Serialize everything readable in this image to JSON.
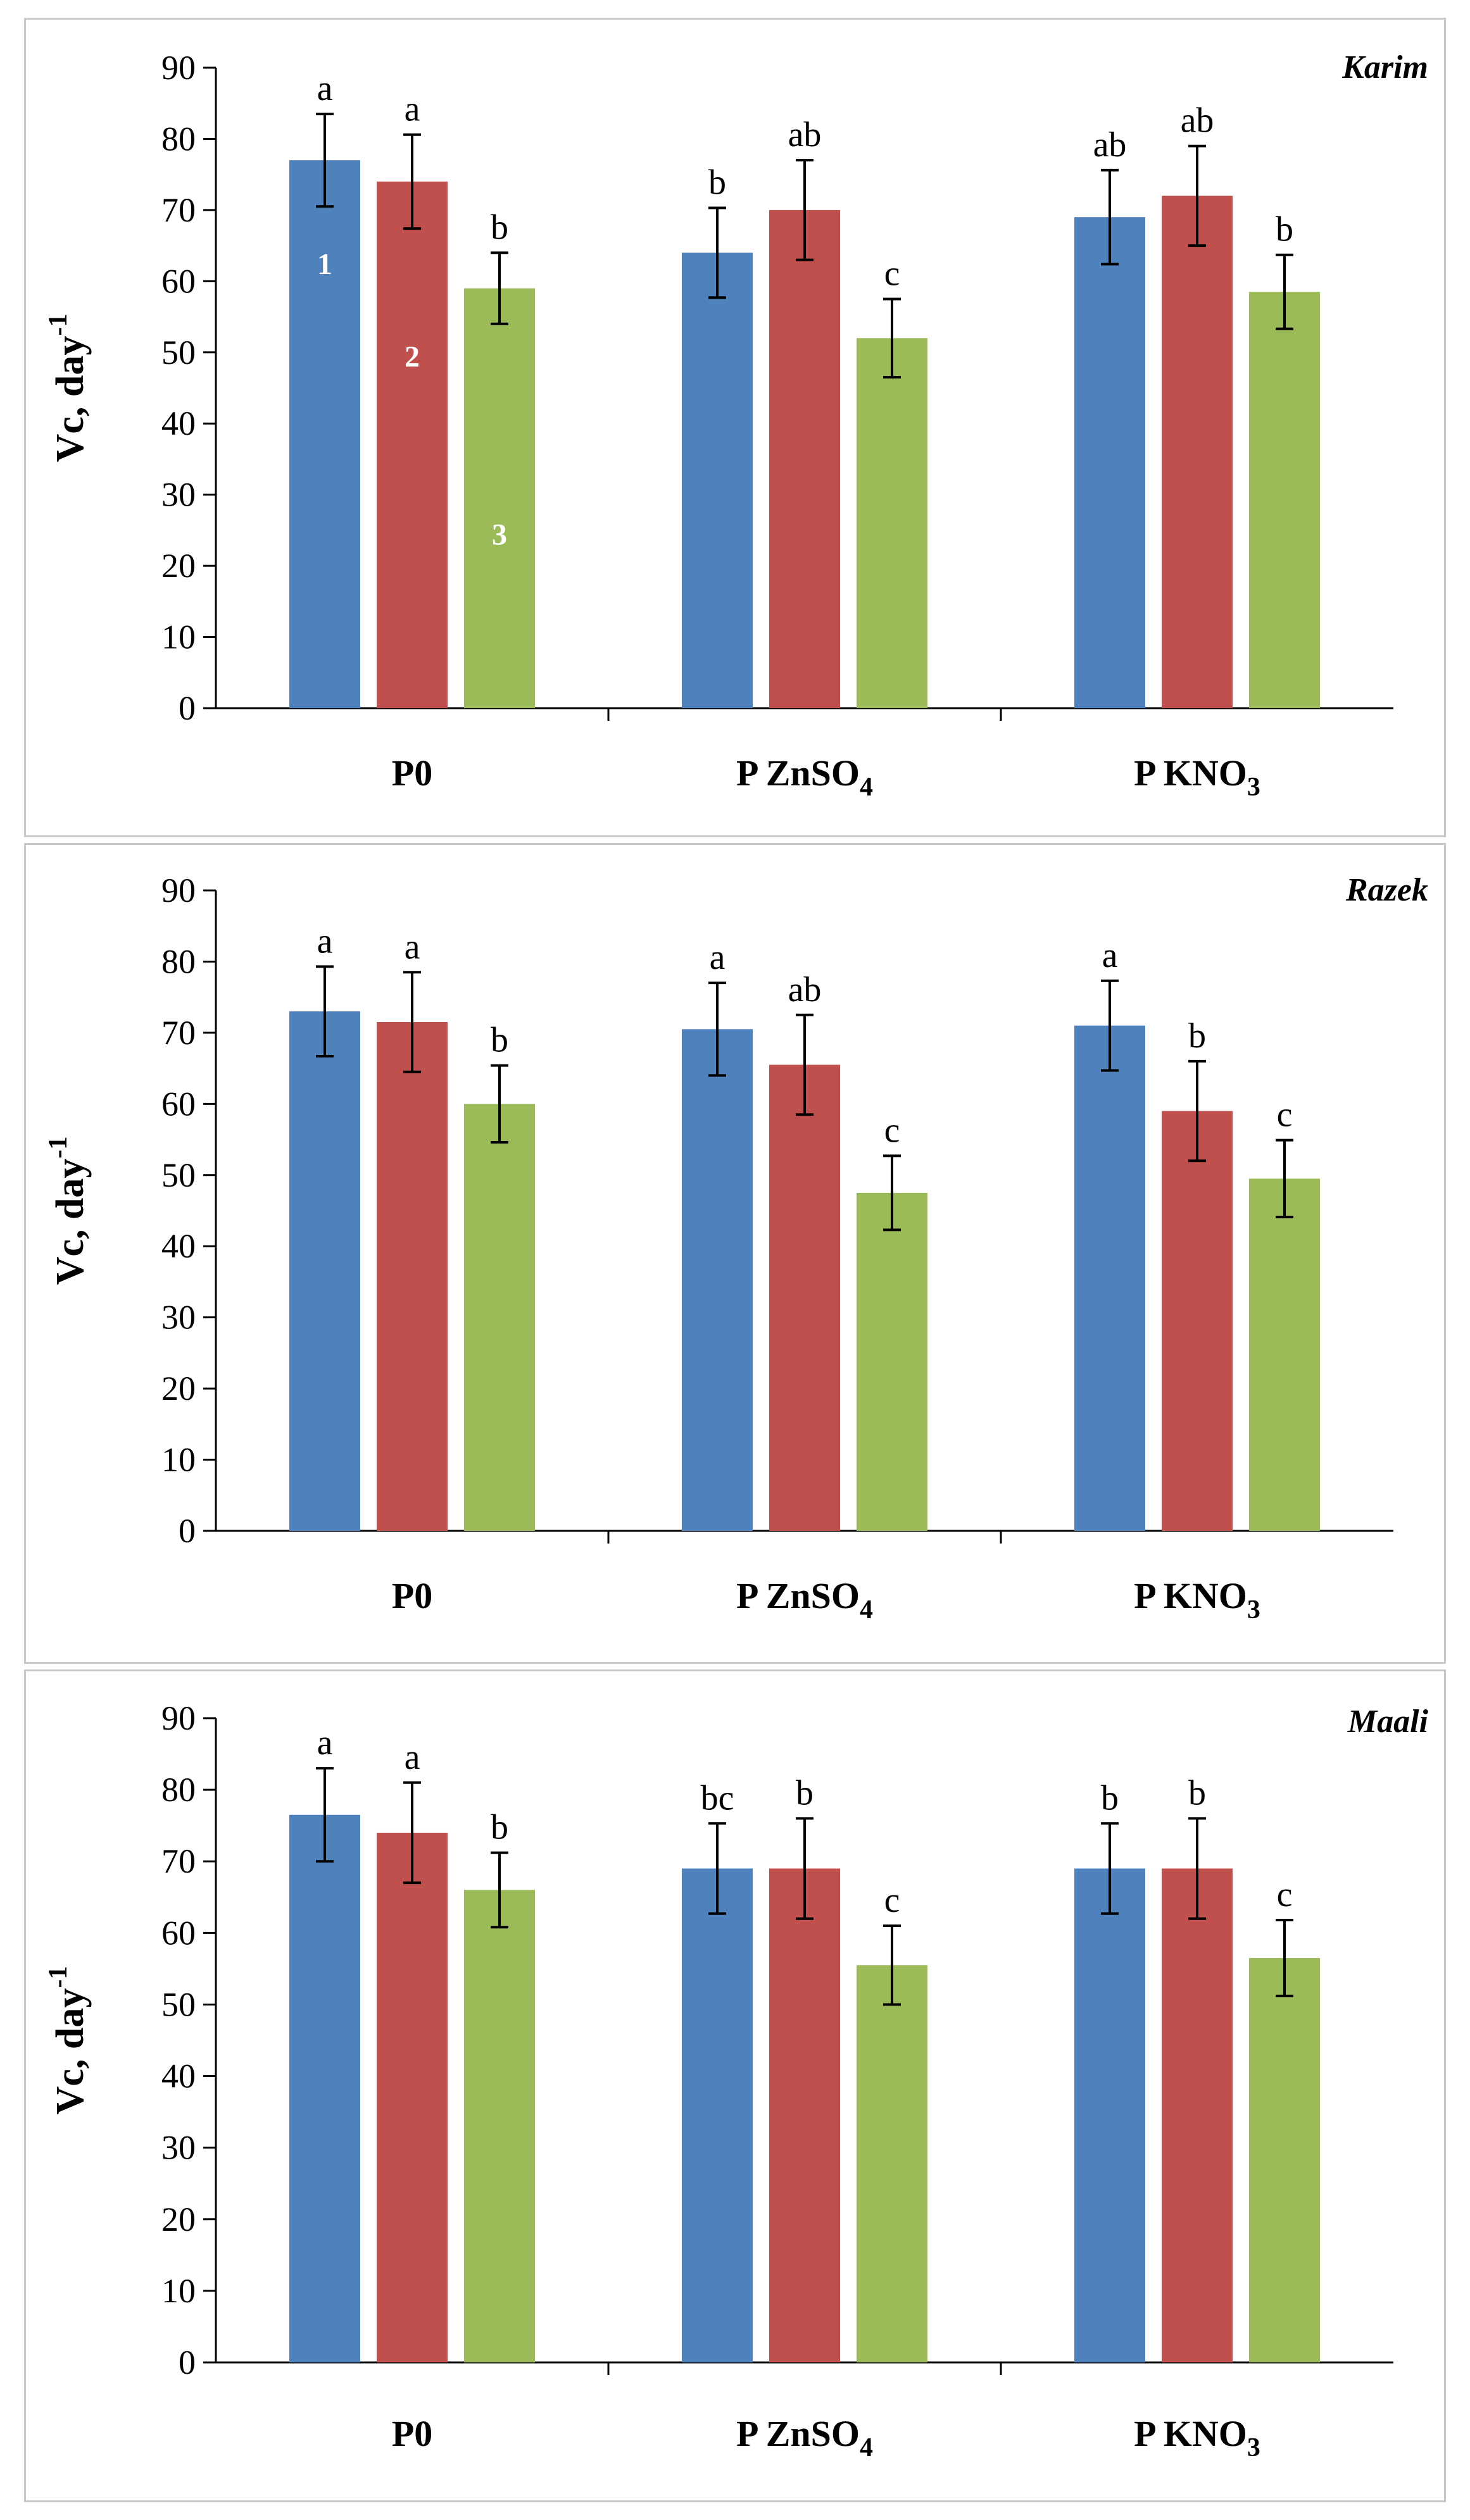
{
  "chart_data": [
    {
      "type": "bar",
      "title": "Karim",
      "ylabel_main": "Vc, day",
      "ylabel_sup": "-1",
      "ylim": [
        0,
        90
      ],
      "yticks": [
        "0",
        "10",
        "20",
        "30",
        "40",
        "50",
        "60",
        "70",
        "80",
        "90"
      ],
      "grid": false,
      "categories": [
        {
          "main": "P0",
          "sub": "",
          "tail": ""
        },
        {
          "main": "P ZnSO",
          "sub": "4",
          "tail": ""
        },
        {
          "main": "P KNO",
          "sub": "3",
          "tail": ""
        }
      ],
      "series": [
        {
          "values": [
            77,
            64,
            69
          ],
          "errors": [
            6.5,
            6.3,
            6.6
          ],
          "letters": [
            "a",
            "b",
            "ab"
          ],
          "color": "#4f81bd",
          "inbar_label": "1"
        },
        {
          "values": [
            74,
            70,
            72
          ],
          "errors": [
            6.6,
            7.0,
            7.0
          ],
          "letters": [
            "a",
            "ab",
            "ab"
          ],
          "color": "#c0504d",
          "inbar_label": "2"
        },
        {
          "values": [
            59,
            52,
            58.5
          ],
          "errors": [
            5.0,
            5.5,
            5.2
          ],
          "letters": [
            "b",
            "c",
            "b"
          ],
          "color": "#9bbb59",
          "inbar_label": "3"
        }
      ]
    },
    {
      "type": "bar",
      "title": "Razek",
      "ylabel_main": "Vc, day",
      "ylabel_sup": "-1",
      "ylim": [
        0,
        90
      ],
      "yticks": [
        "0",
        "10",
        "20",
        "30",
        "40",
        "50",
        "60",
        "70",
        "80",
        "90"
      ],
      "grid": false,
      "categories": [
        {
          "main": "P0",
          "sub": "",
          "tail": ""
        },
        {
          "main": "P ZnSO",
          "sub": "4",
          "tail": ""
        },
        {
          "main": "P KNO",
          "sub": "3",
          "tail": ""
        }
      ],
      "series": [
        {
          "values": [
            73,
            70.5,
            71
          ],
          "errors": [
            6.3,
            6.5,
            6.3
          ],
          "letters": [
            "a",
            "a",
            "a"
          ],
          "color": "#4f81bd",
          "inbar_label": ""
        },
        {
          "values": [
            71.5,
            65.5,
            59
          ],
          "errors": [
            7.0,
            7.0,
            7.0
          ],
          "letters": [
            "a",
            "ab",
            "b"
          ],
          "color": "#c0504d",
          "inbar_label": ""
        },
        {
          "values": [
            60,
            47.5,
            49.5
          ],
          "errors": [
            5.4,
            5.2,
            5.4
          ],
          "letters": [
            "b",
            "c",
            "c"
          ],
          "color": "#9bbb59",
          "inbar_label": ""
        }
      ]
    },
    {
      "type": "bar",
      "title": "Maali",
      "ylabel_main": "Vc, day",
      "ylabel_sup": "-1",
      "ylim": [
        0,
        90
      ],
      "yticks": [
        "0",
        "10",
        "20",
        "30",
        "40",
        "50",
        "60",
        "70",
        "80",
        "90"
      ],
      "grid": false,
      "categories": [
        {
          "main": "P0",
          "sub": "",
          "tail": ""
        },
        {
          "main": "P ZnSO",
          "sub": "4",
          "tail": ""
        },
        {
          "main": "P KNO",
          "sub": "3",
          "tail": ""
        }
      ],
      "series": [
        {
          "values": [
            76.5,
            69,
            69
          ],
          "errors": [
            6.5,
            6.3,
            6.3
          ],
          "letters": [
            "a",
            "bc",
            "b"
          ],
          "color": "#4f81bd",
          "inbar_label": ""
        },
        {
          "values": [
            74,
            69,
            69
          ],
          "errors": [
            7.0,
            7.0,
            7.0
          ],
          "letters": [
            "a",
            "b",
            "b"
          ],
          "color": "#c0504d",
          "inbar_label": ""
        },
        {
          "values": [
            66,
            55.5,
            56.5
          ],
          "errors": [
            5.2,
            5.5,
            5.3
          ],
          "letters": [
            "b",
            "c",
            "c"
          ],
          "color": "#9bbb59",
          "inbar_label": ""
        }
      ]
    }
  ]
}
